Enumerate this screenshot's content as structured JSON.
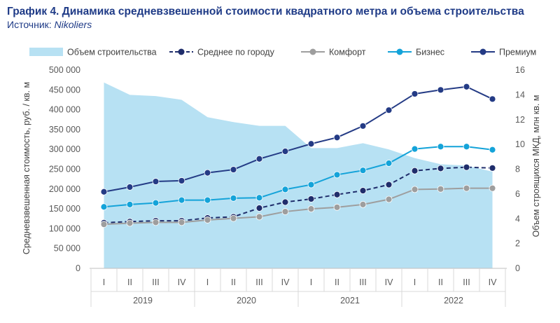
{
  "header": {
    "title": "График 4. Динамика средневзвешенной стоимости квадратного метра и объема строительства",
    "source_label": "Источник: ",
    "source_name": "Nikoliers"
  },
  "chart_data": {
    "type": "line",
    "title": "График 4. Динамика средневзвешенной стоимости квадратного метра и объема строительства",
    "ylabel": "Средневзвешенная стоимость, руб. / кв. м",
    "y2label": "Объем строящихся МКД, млн кв. м",
    "ylim": [
      0,
      500000
    ],
    "y2lim": [
      0,
      16
    ],
    "yticks": [
      "500 000",
      "450 000",
      "400 000",
      "350 000",
      "300 000",
      "250 000",
      "200 000",
      "150 000",
      "100 000",
      "50 000",
      "0"
    ],
    "y2ticks": [
      "16",
      "14",
      "12",
      "10",
      "8",
      "6",
      "4",
      "2",
      "0"
    ],
    "categories": [
      "I",
      "II",
      "III",
      "IV",
      "I",
      "II",
      "III",
      "IV",
      "I",
      "II",
      "III",
      "IV",
      "I",
      "II",
      "III",
      "IV"
    ],
    "years": [
      "2019",
      "2020",
      "2021",
      "2022"
    ],
    "legend_position": "top",
    "grid": false,
    "area": {
      "name": "Объем строительства",
      "axis": "right",
      "color": "#b7e1f3",
      "values": [
        15.0,
        14.0,
        13.9,
        13.6,
        12.2,
        11.8,
        11.5,
        11.5,
        9.7,
        9.7,
        10.1,
        9.6,
        8.9,
        8.4,
        8.3,
        7.8
      ]
    },
    "series": [
      {
        "name": "Среднее по городу",
        "color": "#1f2d6b",
        "dashed": true,
        "values": [
          115000,
          118000,
          120000,
          120000,
          127000,
          130000,
          152000,
          167000,
          175000,
          186000,
          196000,
          211000,
          246000,
          252000,
          255000,
          253000
        ]
      },
      {
        "name": "Комфорт",
        "color": "#9e9e9e",
        "dashed": false,
        "values": [
          111000,
          114000,
          116000,
          116000,
          122000,
          126000,
          130000,
          143000,
          150000,
          154000,
          161000,
          174000,
          199000,
          200000,
          202000,
          202000
        ]
      },
      {
        "name": "Бизнес",
        "color": "#14a3d9",
        "dashed": false,
        "values": [
          155000,
          161000,
          165000,
          172000,
          172000,
          177000,
          178000,
          199000,
          211000,
          236000,
          247000,
          265000,
          301000,
          307000,
          307000,
          299000
        ]
      },
      {
        "name": "Премиум",
        "color": "#243b85",
        "dashed": false,
        "values": [
          193000,
          205000,
          219000,
          221000,
          241000,
          249000,
          276000,
          295000,
          314000,
          330000,
          359000,
          399000,
          440000,
          450000,
          458000,
          427000
        ]
      }
    ]
  }
}
